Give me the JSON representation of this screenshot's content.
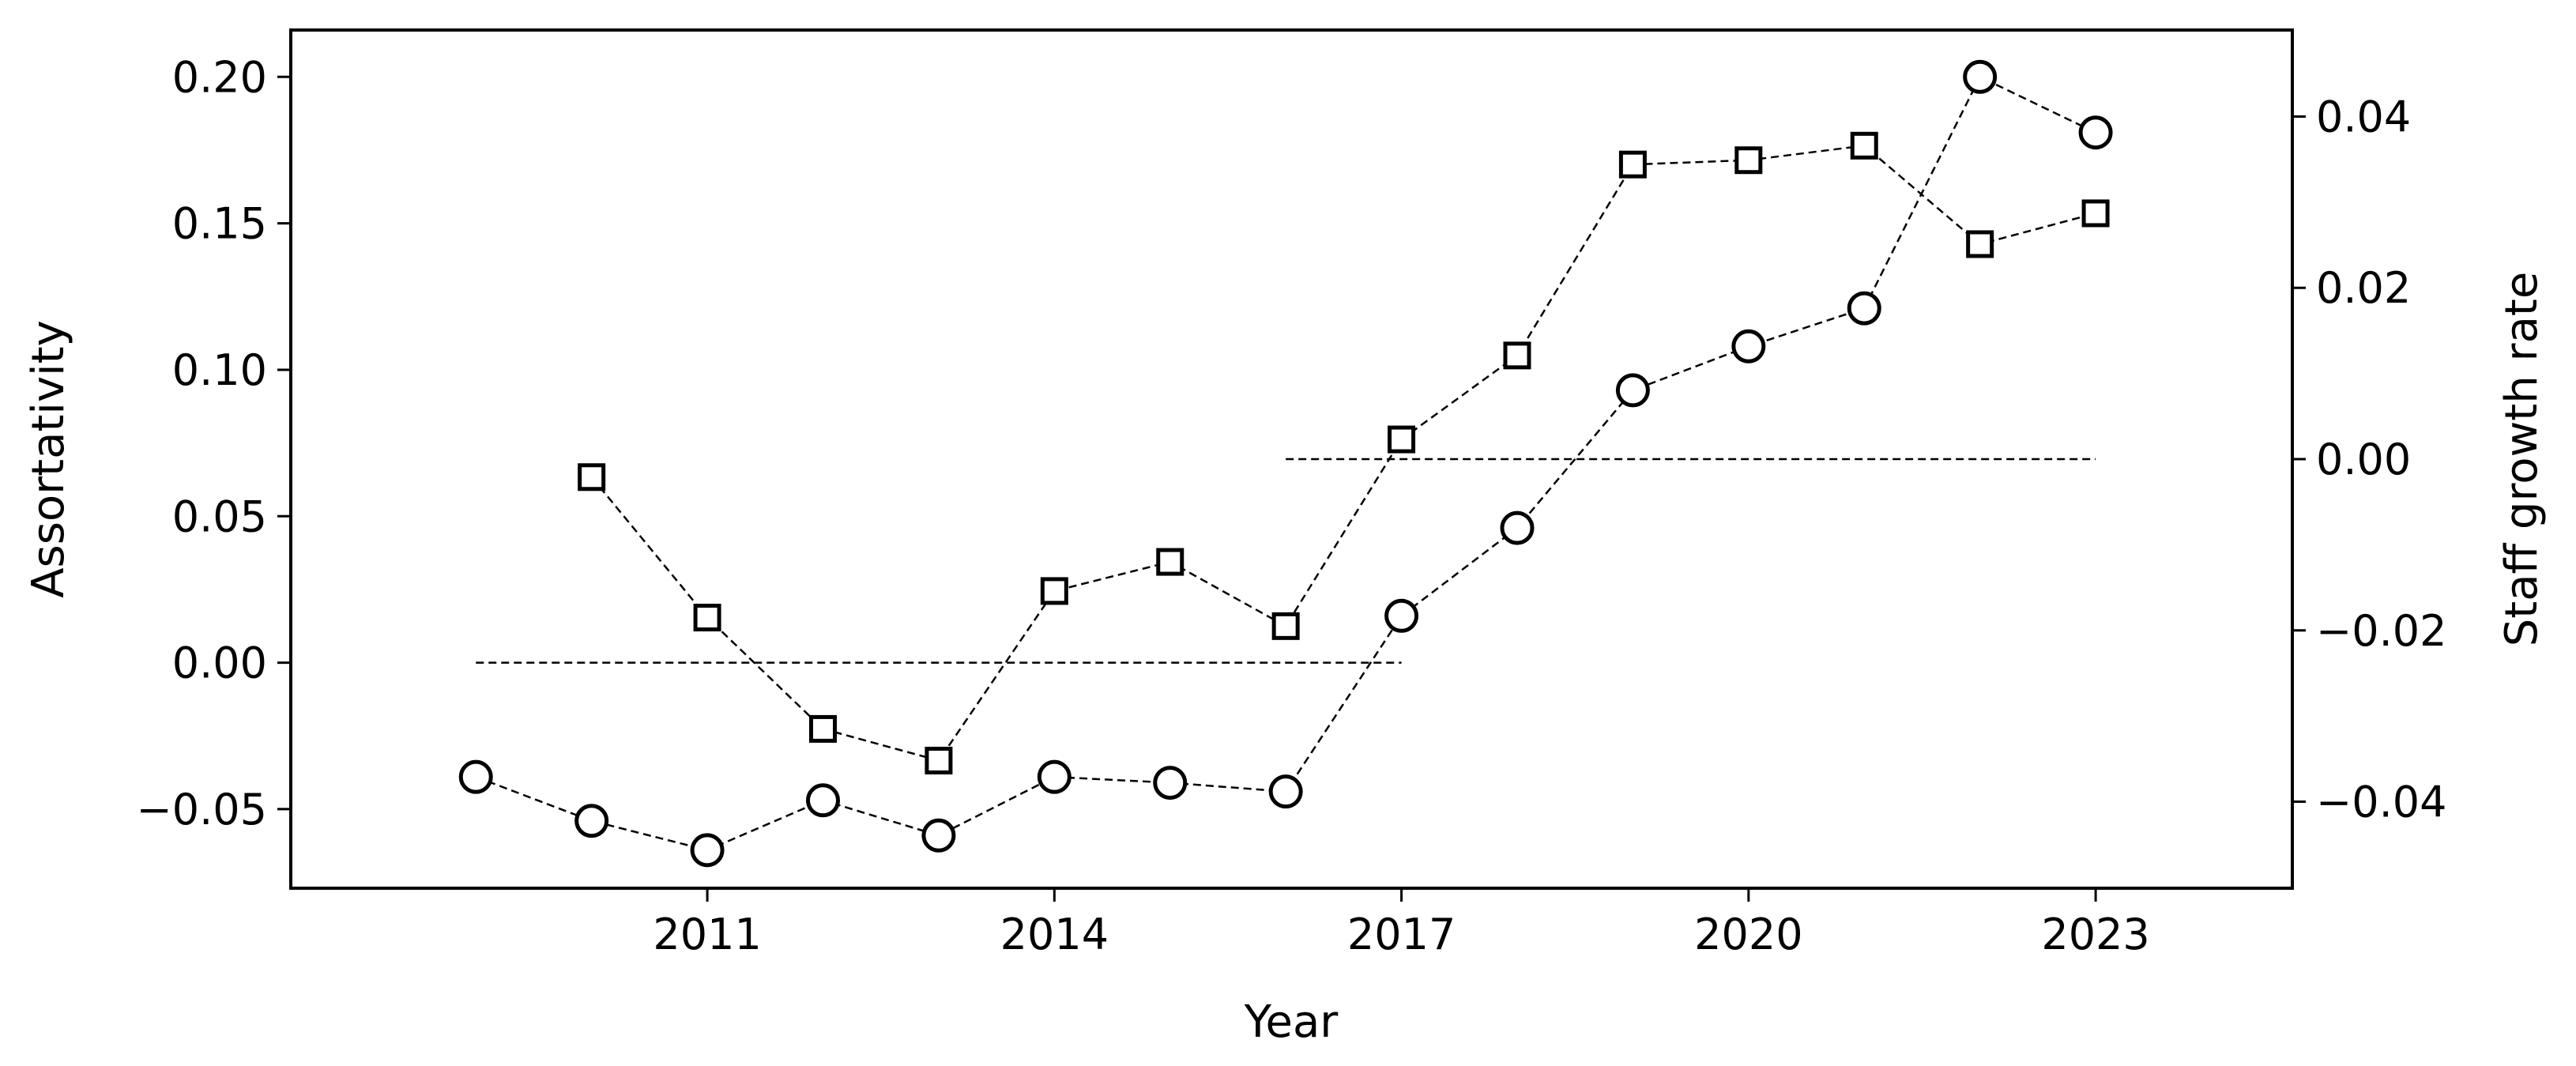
{
  "chart_data": {
    "type": "line",
    "xlabel": "Year",
    "ylabel_left": "Assortativity",
    "ylabel_right": "Staff growth rate",
    "x_ticks": [
      2011,
      2014,
      2017,
      2020,
      2023
    ],
    "x_ticks_labels": [
      "2011",
      "2014",
      "2017",
      "2020",
      "2023"
    ],
    "xlim": [
      2007.4,
      2024.7
    ],
    "y_left_ticks": [
      -0.05,
      0.0,
      0.05,
      0.1,
      0.15,
      0.2
    ],
    "y_left_ticks_labels": [
      "−0.05",
      "0.00",
      "0.05",
      "0.10",
      "0.15",
      "0.20"
    ],
    "y_left_lim": [
      -0.077,
      0.216
    ],
    "y_right_ticks": [
      -0.04,
      -0.02,
      0.0,
      0.02,
      0.04
    ],
    "y_right_ticks_labels": [
      "−0.04",
      "−0.02",
      "0.00",
      "0.02",
      "0.04"
    ],
    "y_right_lim": [
      -0.0501,
      0.0501
    ],
    "grid": false,
    "series": [
      {
        "marker": "circle",
        "axis": "left",
        "color": "#000000",
        "x": [
          2009,
          2010,
          2011,
          2012,
          2013,
          2014,
          2015,
          2016,
          2017,
          2018,
          2019,
          2020,
          2021,
          2022,
          2023
        ],
        "y": [
          -0.039,
          -0.054,
          -0.064,
          -0.047,
          -0.059,
          -0.039,
          -0.041,
          -0.044,
          0.016,
          0.046,
          0.093,
          0.108,
          0.121,
          0.2,
          0.181
        ]
      },
      {
        "marker": "square",
        "axis": "right",
        "color": "#000000",
        "x": [
          2010,
          2011,
          2012,
          2013,
          2014,
          2015,
          2016,
          2017,
          2018,
          2019,
          2020,
          2021,
          2022,
          2023
        ],
        "y": [
          -0.0021,
          -0.0185,
          -0.0315,
          -0.0352,
          -0.0154,
          -0.012,
          -0.0195,
          0.0023,
          0.0121,
          0.0344,
          0.0349,
          0.0366,
          0.0251,
          0.0287
        ]
      }
    ],
    "reference_lines": [
      {
        "axis": "left",
        "y": 0.0,
        "x_start": 2009,
        "x_end": 2017
      },
      {
        "axis": "right",
        "y": 0.0,
        "x_start": 2016,
        "x_end": 2023
      }
    ]
  }
}
